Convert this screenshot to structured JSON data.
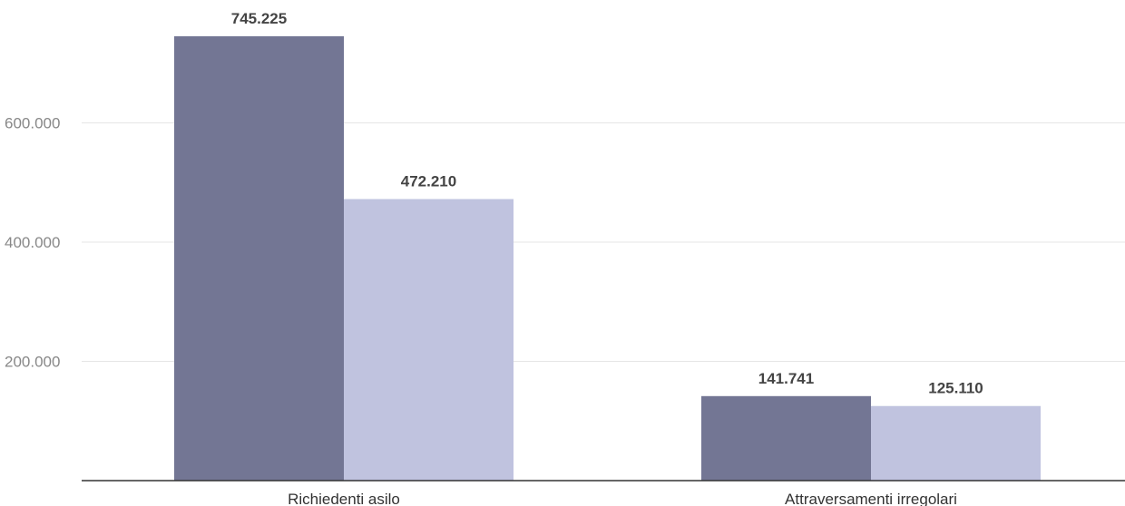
{
  "chart_data": {
    "type": "bar",
    "categories": [
      "Richiedenti asilo",
      "Attraversamenti irregolari"
    ],
    "series": [
      {
        "values": [
          745225,
          141741
        ],
        "color": "#737694"
      },
      {
        "values": [
          472210,
          125110
        ],
        "color": "#c0c3df"
      }
    ],
    "value_labels": [
      [
        "745.225",
        "141.741"
      ],
      [
        "472.210",
        "125.110"
      ]
    ],
    "yticks": [
      200000,
      400000,
      600000
    ],
    "ytick_labels": [
      "200.000",
      "400.000",
      "600.000"
    ],
    "ylim": [
      0,
      800000
    ],
    "grid": true,
    "legend": "none"
  }
}
